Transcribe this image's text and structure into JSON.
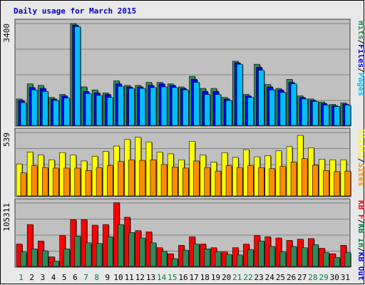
{
  "colors": {
    "background": "#ffffff",
    "frame_outer": "#e0e0e0",
    "panel": "#c0c0c0",
    "grid": "#808080",
    "title": "#0000c0",
    "hits": "#2e8b57",
    "files": "#0000ff",
    "pages": "#00bfff",
    "visits": "#ffff00",
    "sites": "#ff8c00",
    "kb_in": "#008040",
    "kb_out": "#0000ff",
    "kb_f": "#ff0000",
    "kbf_bar": "#ff0000",
    "kbin_bar": "#2e8b57",
    "day_weekday": "#000000",
    "day_weekend": "#008040"
  },
  "chart_data": {
    "type": "bar",
    "title": "Daily usage for March 2015",
    "categories": [
      "1",
      "2",
      "3",
      "4",
      "5",
      "6",
      "7",
      "8",
      "9",
      "10",
      "11",
      "12",
      "13",
      "14",
      "15",
      "16",
      "17",
      "18",
      "19",
      "20",
      "21",
      "22",
      "23",
      "24",
      "25",
      "26",
      "27",
      "28",
      "29",
      "30",
      "31"
    ],
    "weekend_days": [
      "1",
      "7",
      "8",
      "14",
      "15",
      "21",
      "22",
      "28",
      "29"
    ],
    "panels": [
      {
        "name": "hits-files-pages",
        "ymax_label": "3400",
        "ylim": [
          0,
          3400
        ],
        "right_labels": [
          {
            "text": "Hits",
            "color": "#2e8b57"
          },
          {
            "text": "/",
            "color": "#000000"
          },
          {
            "text": "Files",
            "color": "#0000ff"
          },
          {
            "text": "/",
            "color": "#000000"
          },
          {
            "text": "Pages",
            "color": "#00bfff"
          }
        ],
        "series": [
          {
            "name": "Hits",
            "color": "#2e8b57",
            "values": [
              900,
              1400,
              1350,
              950,
              1050,
              3400,
              1300,
              1200,
              1100,
              1500,
              1350,
              1350,
              1450,
              1450,
              1400,
              1300,
              1650,
              1250,
              1250,
              950,
              2150,
              1050,
              2050,
              1380,
              1250,
              1550,
              1000,
              900,
              800,
              720,
              770
            ]
          },
          {
            "name": "Files",
            "color": "#0000ff",
            "values": [
              850,
              1280,
              1250,
              900,
              1000,
              3350,
              1150,
              1100,
              1050,
              1400,
              1300,
              1300,
              1350,
              1400,
              1350,
              1250,
              1550,
              1150,
              1150,
              900,
              2100,
              1000,
              1950,
              1300,
              1200,
              1450,
              950,
              850,
              750,
              680,
              730
            ]
          },
          {
            "name": "Pages",
            "color": "#00bfff",
            "values": [
              780,
              1200,
              1150,
              850,
              930,
              3300,
              1080,
              1020,
              950,
              1320,
              1250,
              1250,
              1280,
              1300,
              1280,
              1200,
              1450,
              1050,
              1050,
              850,
              2050,
              950,
              1850,
              1200,
              1120,
              1400,
              900,
              820,
              700,
              650,
              700
            ]
          }
        ]
      },
      {
        "name": "visits-sites",
        "ymax_label": "539",
        "ylim": [
          0,
          539
        ],
        "right_labels": [
          {
            "text": "Visits",
            "color": "#ffff00"
          },
          {
            "text": "/",
            "color": "#000000"
          },
          {
            "text": "Sites",
            "color": "#ff8c00"
          }
        ],
        "series": [
          {
            "name": "Visits",
            "color": "#ffff00",
            "values": [
              275,
              375,
              350,
              310,
              370,
              350,
              300,
              340,
              380,
              425,
              480,
              500,
              460,
              375,
              360,
              310,
              465,
              350,
              290,
              370,
              330,
              395,
              335,
              345,
              385,
              420,
              515,
              410,
              315,
              310,
              310
            ]
          },
          {
            "name": "Sites",
            "color": "#ff8c00",
            "values": [
              200,
              260,
              245,
              240,
              240,
              240,
              220,
              245,
              260,
              295,
              310,
              305,
              310,
              270,
              250,
              240,
              300,
              245,
              215,
              260,
              245,
              260,
              245,
              235,
              255,
              290,
              320,
              265,
              220,
              210,
              215
            ]
          }
        ]
      },
      {
        "name": "kbf-kbin-kbout",
        "ymax_label": "105311",
        "ylim": [
          0,
          105311
        ],
        "right_labels": [
          {
            "text": "KB F",
            "color": "#ff0000"
          },
          {
            "text": "/",
            "color": "#000000"
          },
          {
            "text": "KB In",
            "color": "#008040"
          },
          {
            "text": "/",
            "color": "#000000"
          },
          {
            "text": "KB Out",
            "color": "#0000ff"
          }
        ],
        "series": [
          {
            "name": "KB F",
            "color": "#ff0000",
            "values": [
              38000,
              70000,
              43000,
              17000,
              52000,
              78000,
              78000,
              69000,
              70000,
              106000,
              82000,
              60000,
              58000,
              32000,
              22000,
              36000,
              50000,
              38000,
              32000,
              25000,
              32000,
              38000,
              52000,
              50000,
              48000,
              44000,
              46000,
              47000,
              31000,
              22000,
              36000
            ]
          },
          {
            "name": "KB In",
            "color": "#2e8b57",
            "values": [
              25000,
              30000,
              27000,
              10000,
              30000,
              51000,
              40000,
              39000,
              50000,
              70000,
              57000,
              48000,
              40000,
              26000,
              14000,
              28000,
              38000,
              30000,
              25000,
              21000,
              20000,
              29000,
              43000,
              34000,
              25000,
              34000,
              32000,
              37000,
              24000,
              16000,
              24000
            ]
          }
        ]
      }
    ]
  }
}
